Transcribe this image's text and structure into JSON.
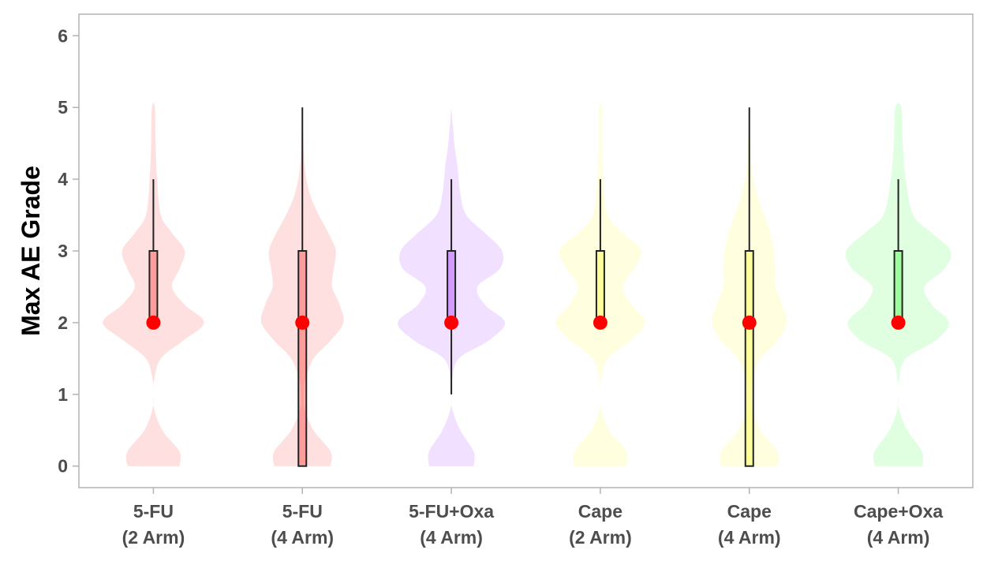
{
  "chart_data": {
    "type": "violin",
    "title": "",
    "xlabel": "",
    "ylabel": "Max AE Grade",
    "ylim": [
      -0.3,
      6.3
    ],
    "yticks": [
      0,
      1,
      2,
      3,
      4,
      5,
      6
    ],
    "grid": false,
    "legend": "none",
    "categories": [
      {
        "line1": "5-FU",
        "line2": "(2 Arm)"
      },
      {
        "line1": "5-FU",
        "line2": "(4 Arm)"
      },
      {
        "line1": "5-FU+Oxa",
        "line2": "(4 Arm)"
      },
      {
        "line1": "Cape",
        "line2": "(2 Arm)"
      },
      {
        "line1": "Cape",
        "line2": "(4 Arm)"
      },
      {
        "line1": "Cape+Oxa",
        "line2": "(4 Arm)"
      }
    ],
    "series": [
      {
        "category": "5-FU (2 Arm)",
        "color": "#ff0000",
        "box": {
          "whisker_low": 2,
          "q1": 2,
          "median": 2,
          "q3": 3,
          "whisker_high": 4
        },
        "density": [
          [
            0,
            0.35
          ],
          [
            0.2,
            0.35
          ],
          [
            0.5,
            0.12
          ],
          [
            0.8,
            0.01
          ],
          [
            1.0,
            0.0
          ],
          [
            1.2,
            0.01
          ],
          [
            1.5,
            0.1
          ],
          [
            1.75,
            0.4
          ],
          [
            2.0,
            0.68
          ],
          [
            2.25,
            0.42
          ],
          [
            2.5,
            0.25
          ],
          [
            2.75,
            0.35
          ],
          [
            3.0,
            0.42
          ],
          [
            3.25,
            0.25
          ],
          [
            3.5,
            0.1
          ],
          [
            4.0,
            0.05
          ],
          [
            4.5,
            0.03
          ],
          [
            5.0,
            0.02
          ]
        ]
      },
      {
        "category": "5-FU (4 Arm)",
        "color": "#ff0000",
        "box": {
          "whisker_low": 0,
          "q1": 0,
          "median": 2,
          "q3": 3,
          "whisker_high": 5
        },
        "density": [
          [
            0,
            0.38
          ],
          [
            0.2,
            0.38
          ],
          [
            0.5,
            0.15
          ],
          [
            0.8,
            0.03
          ],
          [
            1.0,
            0.02
          ],
          [
            1.2,
            0.04
          ],
          [
            1.5,
            0.15
          ],
          [
            1.75,
            0.38
          ],
          [
            2.0,
            0.55
          ],
          [
            2.25,
            0.5
          ],
          [
            2.5,
            0.4
          ],
          [
            2.75,
            0.42
          ],
          [
            3.0,
            0.45
          ],
          [
            3.25,
            0.35
          ],
          [
            3.5,
            0.22
          ],
          [
            3.8,
            0.1
          ],
          [
            4.2,
            0.03
          ],
          [
            5.0,
            0.0
          ]
        ]
      },
      {
        "category": "5-FU+Oxa (4 Arm)",
        "color": "#8b00ff",
        "box": {
          "whisker_low": 1,
          "q1": 2,
          "median": 2,
          "q3": 3,
          "whisker_high": 4
        },
        "density": [
          [
            0,
            0.3
          ],
          [
            0.2,
            0.3
          ],
          [
            0.5,
            0.12
          ],
          [
            0.8,
            0.01
          ],
          [
            1.0,
            0.0
          ],
          [
            1.2,
            0.01
          ],
          [
            1.5,
            0.1
          ],
          [
            1.75,
            0.5
          ],
          [
            2.0,
            0.72
          ],
          [
            2.25,
            0.45
          ],
          [
            2.5,
            0.35
          ],
          [
            2.75,
            0.65
          ],
          [
            3.0,
            0.68
          ],
          [
            3.25,
            0.45
          ],
          [
            3.5,
            0.2
          ],
          [
            3.8,
            0.12
          ],
          [
            4.2,
            0.08
          ],
          [
            4.5,
            0.04
          ],
          [
            5.0,
            0.0
          ]
        ]
      },
      {
        "category": "Cape (2 Arm)",
        "color": "#ffff00",
        "box": {
          "whisker_low": 2,
          "q1": 2,
          "median": 2,
          "q3": 3,
          "whisker_high": 4
        },
        "density": [
          [
            0,
            0.35
          ],
          [
            0.2,
            0.35
          ],
          [
            0.5,
            0.12
          ],
          [
            0.8,
            0.01
          ],
          [
            1.0,
            0.0
          ],
          [
            1.2,
            0.01
          ],
          [
            1.5,
            0.1
          ],
          [
            1.75,
            0.4
          ],
          [
            2.0,
            0.6
          ],
          [
            2.25,
            0.42
          ],
          [
            2.5,
            0.3
          ],
          [
            2.75,
            0.45
          ],
          [
            3.0,
            0.55
          ],
          [
            3.25,
            0.3
          ],
          [
            3.5,
            0.1
          ],
          [
            4.0,
            0.04
          ],
          [
            4.5,
            0.02
          ],
          [
            5.0,
            0.02
          ]
        ]
      },
      {
        "category": "Cape (4 Arm)",
        "color": "#ffff00",
        "box": {
          "whisker_low": 0,
          "q1": 0,
          "median": 2,
          "q3": 3,
          "whisker_high": 5
        },
        "density": [
          [
            0,
            0.38
          ],
          [
            0.2,
            0.38
          ],
          [
            0.5,
            0.15
          ],
          [
            0.8,
            0.03
          ],
          [
            1.0,
            0.02
          ],
          [
            1.2,
            0.04
          ],
          [
            1.5,
            0.15
          ],
          [
            1.75,
            0.38
          ],
          [
            2.0,
            0.5
          ],
          [
            2.25,
            0.44
          ],
          [
            2.5,
            0.35
          ],
          [
            2.75,
            0.35
          ],
          [
            3.0,
            0.33
          ],
          [
            3.25,
            0.28
          ],
          [
            3.5,
            0.2
          ],
          [
            3.8,
            0.1
          ],
          [
            4.2,
            0.03
          ],
          [
            5.0,
            0.0
          ]
        ]
      },
      {
        "category": "Cape+Oxa (4 Arm)",
        "color": "#00ff00",
        "box": {
          "whisker_low": 2,
          "q1": 2,
          "median": 2,
          "q3": 3,
          "whisker_high": 4
        },
        "density": [
          [
            0,
            0.32
          ],
          [
            0.2,
            0.32
          ],
          [
            0.5,
            0.12
          ],
          [
            0.8,
            0.01
          ],
          [
            1.0,
            0.0
          ],
          [
            1.2,
            0.01
          ],
          [
            1.5,
            0.1
          ],
          [
            1.75,
            0.5
          ],
          [
            2.0,
            0.68
          ],
          [
            2.25,
            0.45
          ],
          [
            2.5,
            0.35
          ],
          [
            2.75,
            0.62
          ],
          [
            3.0,
            0.7
          ],
          [
            3.25,
            0.45
          ],
          [
            3.5,
            0.2
          ],
          [
            4.0,
            0.1
          ],
          [
            4.5,
            0.06
          ],
          [
            5.0,
            0.04
          ]
        ]
      }
    ],
    "median_marker_color": "#ff0000"
  }
}
